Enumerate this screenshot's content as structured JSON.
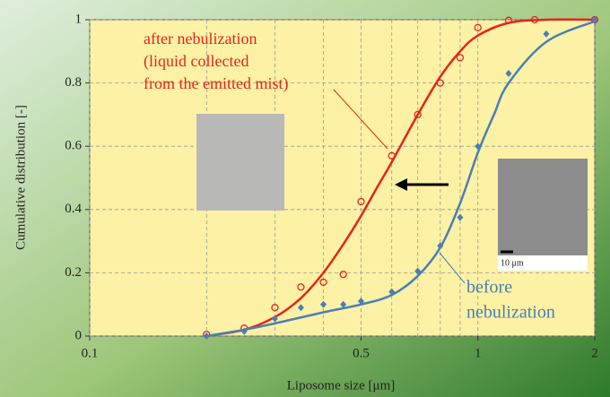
{
  "chart_data": {
    "type": "scatter-fit",
    "x_label": "Liposome size [μm]",
    "y_label": "Cumulative distribution [-]",
    "xlim": [
      0.1,
      2
    ],
    "xticks": [
      0.1,
      0.5,
      1,
      2
    ],
    "x_log": true,
    "minor_xticks": [
      0.2,
      0.3,
      0.4,
      0.6,
      0.7,
      0.8,
      0.9
    ],
    "ylim": [
      0,
      1
    ],
    "yticks": [
      0,
      0.2,
      0.4,
      0.6,
      0.8,
      1
    ],
    "grid": true,
    "series": [
      {
        "color": "#e8231c",
        "marker": "circle",
        "x": [
          0.2,
          0.25,
          0.3,
          0.35,
          0.4,
          0.45,
          0.5,
          0.6,
          0.7,
          0.8,
          0.9,
          1.0,
          1.2,
          1.4,
          2
        ],
        "values": [
          0.005,
          0.025,
          0.09,
          0.155,
          0.17,
          0.195,
          0.425,
          0.57,
          0.7,
          0.8,
          0.88,
          0.975,
          0.998,
          1.0,
          1.0
        ],
        "fit_x": [
          0.2,
          0.25,
          0.3,
          0.35,
          0.4,
          0.45,
          0.5,
          0.55,
          0.6,
          0.7,
          0.8,
          0.9,
          1.0,
          1.2,
          1.5,
          2
        ],
        "fit_values": [
          0.0,
          0.02,
          0.06,
          0.12,
          0.2,
          0.29,
          0.38,
          0.47,
          0.55,
          0.7,
          0.82,
          0.9,
          0.95,
          0.99,
          1.0,
          1.0
        ]
      },
      {
        "color": "#4a7fb5",
        "marker": "diamond",
        "x": [
          0.2,
          0.25,
          0.3,
          0.35,
          0.4,
          0.45,
          0.5,
          0.6,
          0.7,
          0.8,
          0.9,
          1.0,
          1.2,
          1.5,
          2
        ],
        "values": [
          0.0,
          0.015,
          0.055,
          0.09,
          0.1,
          0.1,
          0.11,
          0.14,
          0.205,
          0.285,
          0.375,
          0.6,
          0.83,
          0.955,
          1.0
        ],
        "fit_x": [
          0.2,
          0.25,
          0.3,
          0.4,
          0.5,
          0.6,
          0.7,
          0.8,
          0.9,
          1.0,
          1.1,
          1.2,
          1.5,
          2
        ],
        "fit_values": [
          0.0,
          0.02,
          0.04,
          0.075,
          0.1,
          0.13,
          0.19,
          0.28,
          0.42,
          0.58,
          0.7,
          0.8,
          0.93,
          0.995
        ]
      }
    ],
    "annotations": [
      {
        "lines": [
          "after nebulization",
          "(liquid collected",
          "from the emitted mist)"
        ],
        "color": "#e8231c"
      },
      {
        "lines": [
          "before",
          "nebulization"
        ],
        "color": "#4a7fb5"
      }
    ],
    "scale_label": "10 μm"
  }
}
